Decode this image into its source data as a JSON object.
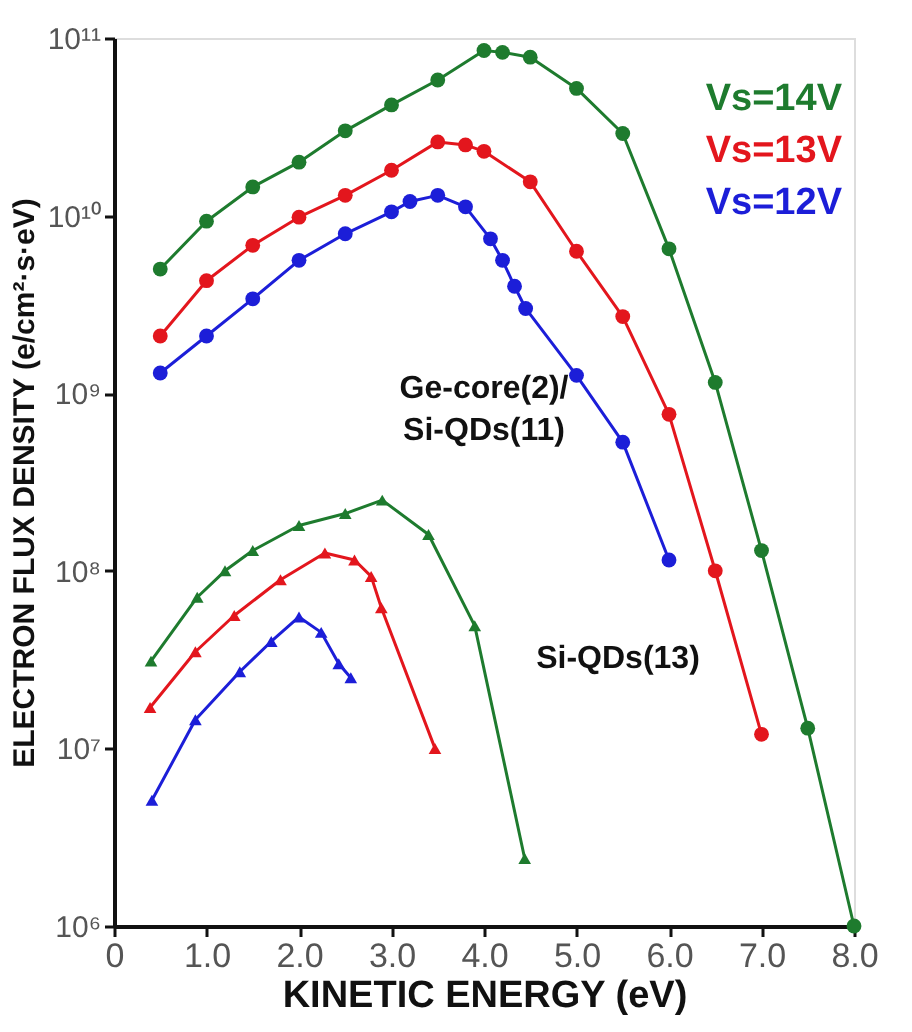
{
  "chart_data": {
    "type": "line",
    "xlabel": "KINETIC ENERGY (eV)",
    "ylabel": "ELECTRON FLUX DENSITY (e/cm²·s·eV)",
    "log": "y",
    "grid": false,
    "legend": "top right",
    "xlim": [
      0,
      8
    ],
    "xticks": [
      0,
      {
        "value": 1,
        "label": "1.0"
      },
      {
        "value": 2,
        "label": "2.0"
      },
      {
        "value": 3,
        "label": "3.0"
      },
      {
        "value": 4,
        "label": "4.0"
      },
      {
        "value": 5,
        "label": "5.0"
      },
      {
        "value": 6,
        "label": "6.0"
      },
      {
        "value": 7,
        "label": "7.0"
      },
      {
        "value": 8,
        "label": "8.0"
      }
    ],
    "ylim": [
      1000000.0,
      100000000000.0
    ],
    "yticks": [
      {
        "value": 1000000.0,
        "label": "10⁶"
      },
      {
        "value": 10000000.0,
        "label": "10⁷"
      },
      {
        "value": 100000000.0,
        "label": "10⁸"
      },
      {
        "value": 1000000000.0,
        "label": "10⁹"
      },
      {
        "value": 10000000000.0,
        "label": "10¹⁰"
      },
      {
        "value": 100000000000.0,
        "label": "10¹¹"
      }
    ],
    "series": [
      {
        "name": "Vs=14V",
        "color": "#1e7b2e",
        "marker": "circle",
        "x": [
          0.5,
          1.0,
          1.5,
          2.0,
          2.5,
          3.0,
          3.5,
          4.0,
          4.2,
          4.5,
          5.0,
          5.5,
          6.0,
          6.5,
          7.0,
          7.5,
          8.0
        ],
        "values": [
          5000000000.0,
          9300000000.0,
          14500000000.0,
          20000000000.0,
          30000000000.0,
          42000000000.0,
          58000000000.0,
          85000000000.0,
          83000000000.0,
          78000000000.0,
          52000000000.0,
          29000000000.0,
          6500000000.0,
          1150000000.0,
          130000000.0,
          13000000.0,
          1000000.0
        ]
      },
      {
        "name": "Vs=13V",
        "color": "#e3161d",
        "marker": "circle",
        "x": [
          0.5,
          1.0,
          1.5,
          2.0,
          2.5,
          3.0,
          3.5,
          3.8,
          4.0,
          4.5,
          5.0,
          5.5,
          6.0,
          6.5,
          7.0
        ],
        "values": [
          2100000000.0,
          4300000000.0,
          6800000000.0,
          9800000000.0,
          13000000000.0,
          18000000000.0,
          26000000000.0,
          25000000000.0,
          23000000000.0,
          15500000000.0,
          6300000000.0,
          2700000000.0,
          760000000.0,
          100000000.0,
          12000000.0
        ]
      },
      {
        "name": "Vs=12V",
        "color": "#1c1ed8",
        "marker": "circle",
        "x": [
          0.5,
          1.0,
          1.5,
          2.0,
          2.5,
          3.0,
          3.2,
          3.5,
          3.8,
          4.07,
          4.2,
          4.33,
          4.45,
          5.0,
          5.5,
          6.0
        ],
        "values": [
          1300000000.0,
          2100000000.0,
          3400000000.0,
          5600000000.0,
          7900000000.0,
          10500000000.0,
          12000000000.0,
          13000000000.0,
          11200000000.0,
          7400000000.0,
          5600000000.0,
          4000000000.0,
          3000000000.0,
          1260000000.0,
          530000000.0,
          115000000.0
        ]
      },
      {
        "color": "#1e7b2e",
        "marker": "triangle",
        "x": [
          0.4,
          0.9,
          1.2,
          1.5,
          2.0,
          2.5,
          2.9,
          3.4,
          3.9,
          4.44
        ],
        "values": [
          31000000.0,
          71000000.0,
          100000000.0,
          130000000.0,
          180000000.0,
          210000000.0,
          250000000.0,
          160000000.0,
          49000000.0,
          2400000.0
        ]
      },
      {
        "color": "#e3161d",
        "marker": "triangle",
        "x": [
          0.39,
          0.88,
          1.3,
          1.8,
          2.28,
          2.6,
          2.78,
          2.89,
          3.47
        ],
        "values": [
          17000000.0,
          35000000.0,
          56000000.0,
          89000000.0,
          126000000.0,
          115000000.0,
          93000000.0,
          62000000.0,
          10000000.0
        ]
      },
      {
        "color": "#1c1ed8",
        "marker": "triangle",
        "x": [
          0.41,
          0.88,
          1.36,
          1.7,
          2.0,
          2.24,
          2.43,
          2.56
        ],
        "values": [
          5100000.0,
          14500000.0,
          27000000.0,
          40000000.0,
          55000000.0,
          45000000.0,
          30000000.0,
          25000000.0
        ]
      }
    ],
    "annotations": [
      "Ge-core(2)/\nSi-QDs(11)",
      "Si-QDs(13)"
    ]
  }
}
